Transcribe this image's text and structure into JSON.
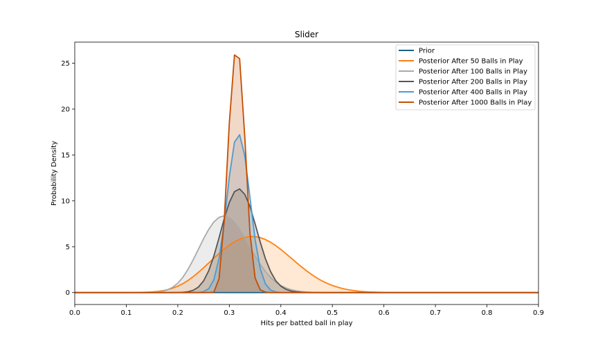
{
  "chart_data": {
    "type": "area",
    "title": "Slider",
    "xlabel": "Hits per batted ball in play",
    "ylabel": "Probability Density",
    "xlim": [
      0,
      0.9
    ],
    "ylim": [
      -1.3,
      27.3
    ],
    "xticks": [
      0.0,
      0.1,
      0.2,
      0.3,
      0.4,
      0.5,
      0.6,
      0.7,
      0.8,
      0.9
    ],
    "xtick_labels": [
      "0.0",
      "0.1",
      "0.2",
      "0.3",
      "0.4",
      "0.5",
      "0.6",
      "0.7",
      "0.8",
      "0.9"
    ],
    "yticks": [
      0,
      5,
      10,
      15,
      20,
      25
    ],
    "ytick_labels": [
      "0",
      "5",
      "10",
      "15",
      "20",
      "25"
    ],
    "grid": false,
    "legend_position": "top-right",
    "x": [
      0.0,
      0.01,
      0.02,
      0.03,
      0.04,
      0.05,
      0.06,
      0.07,
      0.08,
      0.09,
      0.1,
      0.11,
      0.12,
      0.13,
      0.14,
      0.15,
      0.16,
      0.17,
      0.18,
      0.19,
      0.2,
      0.21,
      0.22,
      0.23,
      0.24,
      0.25,
      0.26,
      0.27,
      0.28,
      0.29,
      0.3,
      0.31,
      0.32,
      0.33,
      0.34,
      0.35,
      0.36,
      0.37,
      0.38,
      0.39,
      0.4,
      0.41,
      0.42,
      0.43,
      0.44,
      0.45,
      0.46,
      0.47,
      0.48,
      0.49,
      0.5,
      0.51,
      0.52,
      0.53,
      0.54,
      0.55,
      0.56,
      0.57,
      0.58,
      0.59,
      0.6,
      0.61,
      0.62,
      0.63,
      0.64,
      0.65,
      0.66,
      0.67,
      0.68,
      0.69,
      0.7,
      0.71,
      0.72,
      0.73,
      0.74,
      0.75,
      0.76,
      0.77,
      0.78,
      0.79,
      0.8,
      0.81,
      0.82,
      0.83,
      0.84,
      0.85,
      0.86,
      0.87,
      0.88,
      0.89,
      0.9
    ],
    "series": [
      {
        "name": "Prior",
        "color": "#1a5f86",
        "fill_opacity": 0.15,
        "values": [
          0,
          0,
          0,
          0,
          0,
          0,
          0,
          0,
          0,
          0,
          0,
          0,
          0,
          0,
          0,
          0,
          0,
          0,
          0,
          0,
          0,
          0,
          0,
          0,
          0,
          0,
          0,
          0,
          0,
          0,
          0,
          0,
          0,
          0,
          0,
          0,
          0,
          0,
          0,
          0,
          0,
          0,
          0,
          0,
          0,
          0,
          0,
          0,
          0,
          0,
          0,
          0,
          0,
          0,
          0,
          0,
          0,
          0,
          0,
          0,
          0,
          0,
          0,
          0,
          0,
          0,
          0,
          0,
          0,
          0,
          0,
          0,
          0,
          0,
          0,
          0,
          0,
          0,
          0,
          0,
          0,
          0,
          0,
          0,
          0,
          0,
          0,
          0,
          0,
          0,
          0
        ]
      },
      {
        "name": "Posterior After 50 Balls in Play",
        "color": "#ff7f0e",
        "fill_opacity": 0.18,
        "values": [
          0,
          0,
          0,
          0,
          0,
          0,
          0,
          0,
          0,
          0,
          0,
          0,
          0.01,
          0.02,
          0.04,
          0.07,
          0.12,
          0.2,
          0.32,
          0.48,
          0.7,
          0.98,
          1.33,
          1.74,
          2.2,
          2.7,
          3.22,
          3.75,
          4.26,
          4.74,
          5.16,
          5.53,
          5.82,
          6.01,
          6.11,
          6.1,
          5.99,
          5.78,
          5.49,
          5.12,
          4.7,
          4.24,
          3.76,
          3.28,
          2.81,
          2.37,
          1.96,
          1.59,
          1.27,
          1.0,
          0.78,
          0.59,
          0.44,
          0.32,
          0.23,
          0.16,
          0.11,
          0.07,
          0.05,
          0.03,
          0.02,
          0.01,
          0.01,
          0,
          0,
          0,
          0,
          0,
          0,
          0,
          0,
          0,
          0,
          0,
          0,
          0,
          0,
          0,
          0,
          0,
          0,
          0,
          0,
          0,
          0,
          0,
          0,
          0,
          0,
          0,
          0
        ]
      },
      {
        "name": "Posterior After 100 Balls in Play",
        "color": "#a9a9a9",
        "fill_opacity": 0.22,
        "values": [
          0,
          0,
          0,
          0,
          0,
          0,
          0,
          0,
          0,
          0,
          0,
          0,
          0,
          0,
          0,
          0.02,
          0.06,
          0.14,
          0.3,
          0.58,
          1.03,
          1.68,
          2.55,
          3.59,
          4.73,
          5.87,
          6.89,
          7.7,
          8.2,
          8.36,
          8.16,
          7.64,
          6.87,
          5.94,
          4.95,
          3.97,
          3.07,
          2.29,
          1.65,
          1.15,
          0.77,
          0.5,
          0.31,
          0.19,
          0.11,
          0.06,
          0.03,
          0.02,
          0.01,
          0,
          0,
          0,
          0,
          0,
          0,
          0,
          0,
          0,
          0,
          0,
          0,
          0,
          0,
          0,
          0,
          0,
          0,
          0,
          0,
          0,
          0,
          0,
          0,
          0,
          0,
          0,
          0,
          0,
          0,
          0,
          0,
          0,
          0,
          0,
          0,
          0,
          0,
          0,
          0,
          0,
          0
        ]
      },
      {
        "name": "Posterior After 200 Balls in Play",
        "color": "#555555",
        "fill_opacity": 0.22,
        "values": [
          0,
          0,
          0,
          0,
          0,
          0,
          0,
          0,
          0,
          0,
          0,
          0,
          0,
          0,
          0,
          0,
          0,
          0,
          0,
          0,
          0.01,
          0.03,
          0.09,
          0.25,
          0.6,
          1.27,
          2.38,
          3.98,
          5.96,
          8.04,
          9.82,
          11.0,
          11.3,
          10.7,
          9.4,
          7.5,
          5.5,
          3.7,
          2.3,
          1.3,
          0.7,
          0.35,
          0.16,
          0.07,
          0.03,
          0.01,
          0,
          0,
          0,
          0,
          0,
          0,
          0,
          0,
          0,
          0,
          0,
          0,
          0,
          0,
          0,
          0,
          0,
          0,
          0,
          0,
          0,
          0,
          0,
          0,
          0,
          0,
          0,
          0,
          0,
          0,
          0,
          0,
          0,
          0,
          0,
          0,
          0,
          0,
          0,
          0,
          0,
          0,
          0,
          0,
          0
        ]
      },
      {
        "name": "Posterior After 400 Balls in Play",
        "color": "#4a9ad4",
        "fill_opacity": 0.2,
        "values": [
          0,
          0,
          0,
          0,
          0,
          0,
          0,
          0,
          0,
          0,
          0,
          0,
          0,
          0,
          0,
          0,
          0,
          0,
          0,
          0,
          0,
          0,
          0,
          0,
          0.02,
          0.1,
          0.42,
          1.4,
          3.7,
          7.6,
          12.6,
          16.4,
          17.2,
          14.9,
          10.4,
          5.8,
          2.6,
          0.95,
          0.28,
          0.07,
          0.01,
          0,
          0,
          0,
          0,
          0,
          0,
          0,
          0,
          0,
          0,
          0,
          0,
          0,
          0,
          0,
          0,
          0,
          0,
          0,
          0,
          0,
          0,
          0,
          0,
          0,
          0,
          0,
          0,
          0,
          0,
          0,
          0,
          0,
          0,
          0,
          0,
          0,
          0,
          0,
          0,
          0,
          0,
          0,
          0,
          0,
          0,
          0,
          0,
          0,
          0
        ]
      },
      {
        "name": "Posterior After 1000 Balls in Play",
        "color": "#c44d00",
        "fill_opacity": 0.22,
        "values": [
          0,
          0,
          0,
          0,
          0,
          0,
          0,
          0,
          0,
          0,
          0,
          0,
          0,
          0,
          0,
          0,
          0,
          0,
          0,
          0,
          0,
          0,
          0,
          0,
          0,
          0,
          0,
          0.05,
          1.5,
          7.8,
          18.5,
          25.9,
          25.5,
          17.0,
          6.5,
          1.6,
          0.3,
          0.05,
          0,
          0,
          0,
          0,
          0,
          0,
          0,
          0,
          0,
          0,
          0,
          0,
          0,
          0,
          0,
          0,
          0,
          0,
          0,
          0,
          0,
          0,
          0,
          0,
          0,
          0,
          0,
          0,
          0,
          0,
          0,
          0,
          0,
          0,
          0,
          0,
          0,
          0,
          0,
          0,
          0,
          0,
          0,
          0,
          0,
          0,
          0,
          0,
          0,
          0,
          0,
          0,
          0
        ]
      }
    ]
  }
}
